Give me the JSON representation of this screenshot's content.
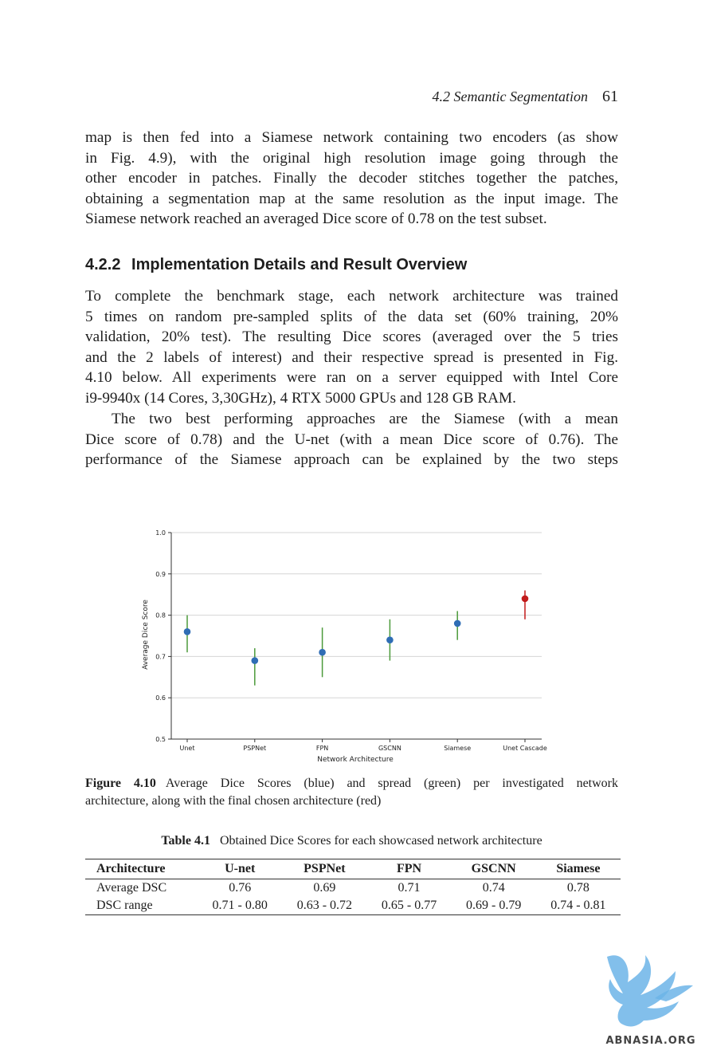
{
  "running_head": {
    "section": "4.2 Semantic Segmentation",
    "page_number": "61"
  },
  "paragraph1": [
    "map is then fed into a Siamese network containing two encoders (as show",
    "in Fig. 4.9), with the original high resolution image going through the",
    "other encoder in patches. Finally the decoder stitches together the patches,",
    "obtaining a segmentation map at the same resolution as the input image. The",
    "Siamese network reached an averaged Dice score of 0.78 on the test subset."
  ],
  "section": {
    "number": "4.2.2",
    "title": "Implementation Details and Result Overview"
  },
  "paragraph2": [
    "To complete the benchmark stage, each network architecture was trained",
    "5 times on random pre-sampled splits of the data set (60% training, 20%",
    "validation, 20% test). The resulting Dice scores (averaged over the 5 tries",
    "and the 2 labels of interest) and their respective spread is presented in Fig.",
    "4.10 below. All experiments were ran on a server equipped with Intel Core",
    "i9-9940x (14 Cores, 3,30GHz), 4 RTX 5000 GPUs and 128 GB RAM."
  ],
  "paragraph3": [
    "The two best performing approaches are the Siamese (with a mean",
    "Dice score of 0.78) and the U-net (with a mean Dice score of 0.76). The",
    "performance of the Siamese approach can be explained by the two steps"
  ],
  "figure": {
    "label": "Figure 4.10",
    "caption_lines": [
      "Average Dice Scores (blue) and spread (green) per investigated network",
      "architecture, along with the final chosen architecture (red)"
    ]
  },
  "chart_data": {
    "type": "scatter",
    "title": "",
    "xlabel": "Network Architecture",
    "ylabel": "Average Dice Score",
    "categories": [
      "Unet",
      "PSPNet",
      "FPN",
      "GSCNN",
      "Siamese",
      "Unet Cascade"
    ],
    "values": [
      0.76,
      0.69,
      0.71,
      0.74,
      0.78,
      0.84
    ],
    "ranges": [
      [
        0.71,
        0.8
      ],
      [
        0.63,
        0.72
      ],
      [
        0.65,
        0.77
      ],
      [
        0.69,
        0.79
      ],
      [
        0.74,
        0.81
      ],
      [
        0.79,
        0.86
      ]
    ],
    "point_colors": [
      "#2f6db5",
      "#2f6db5",
      "#2f6db5",
      "#2f6db5",
      "#2f6db5",
      "#c21b1b"
    ],
    "range_colors": [
      "#4c9a3a",
      "#4c9a3a",
      "#4c9a3a",
      "#4c9a3a",
      "#4c9a3a",
      "#c21b1b"
    ],
    "ylim": [
      0.5,
      1.0
    ],
    "yticks": [
      "0.5",
      "0.6",
      "0.7",
      "0.8",
      "0.9",
      "1.0"
    ],
    "grid": true
  },
  "table": {
    "label": "Table 4.1",
    "caption": "Obtained Dice Scores for each showcased network architecture",
    "headers": [
      "Architecture",
      "U-net",
      "PSPNet",
      "FPN",
      "GSCNN",
      "Siamese"
    ],
    "rows": [
      [
        "Average DSC",
        "0.76",
        "0.69",
        "0.71",
        "0.74",
        "0.78"
      ],
      [
        "DSC range",
        "0.71 - 0.80",
        "0.63 - 0.72",
        "0.65 - 0.77",
        "0.69 - 0.79",
        "0.74 - 0.81"
      ]
    ]
  },
  "watermark": {
    "text": "ABNASIA.ORG",
    "color": "#6cb4e8"
  }
}
